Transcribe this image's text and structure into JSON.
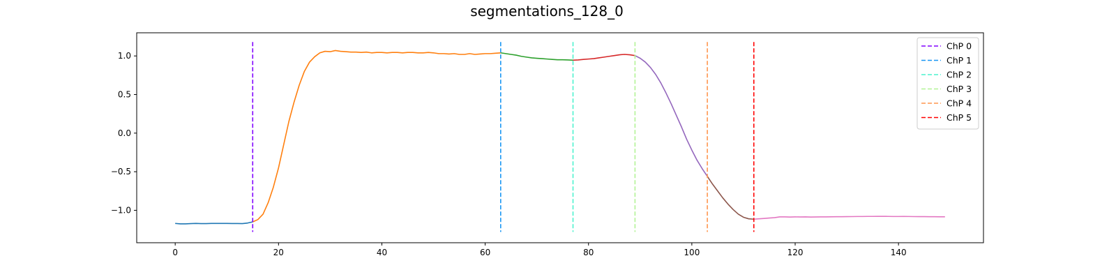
{
  "chart_data": {
    "type": "line",
    "title": "segmentations_128_0",
    "xlabel": "",
    "ylabel": "",
    "xlim": [
      -7.45,
      156.45
    ],
    "ylim": [
      -1.42,
      1.3
    ],
    "x_ticks": [
      0,
      20,
      40,
      60,
      80,
      100,
      120,
      140
    ],
    "x_tick_labels": [
      "0",
      "20",
      "40",
      "60",
      "80",
      "100",
      "120",
      "140"
    ],
    "y_ticks": [
      -1.0,
      -0.5,
      0.0,
      0.5,
      1.0
    ],
    "y_tick_labels": [
      "−1.0",
      "−0.5",
      "0.0",
      "0.5",
      "1.0"
    ],
    "grid": false,
    "legend_position": "top-right",
    "segments": [
      {
        "color": "#1f77b4",
        "x": [
          0,
          1,
          2,
          3,
          4,
          5,
          6,
          7,
          8,
          9,
          10,
          11,
          12,
          13,
          14,
          15
        ],
        "y": [
          -1.17,
          -1.175,
          -1.175,
          -1.172,
          -1.17,
          -1.172,
          -1.172,
          -1.17,
          -1.17,
          -1.17,
          -1.17,
          -1.171,
          -1.171,
          -1.172,
          -1.165,
          -1.15
        ]
      },
      {
        "color": "#ff7f0e",
        "x": [
          15,
          16,
          17,
          18,
          19,
          20,
          21,
          22,
          23,
          24,
          25,
          26,
          27,
          28,
          29,
          30,
          31,
          32,
          33,
          34,
          35,
          36,
          37,
          38,
          39,
          40,
          41,
          42,
          43,
          44,
          45,
          46,
          47,
          48,
          49,
          50,
          51,
          52,
          53,
          54,
          55,
          56,
          57,
          58,
          59,
          60,
          61,
          62,
          63
        ],
        "y": [
          -1.15,
          -1.12,
          -1.05,
          -0.9,
          -0.7,
          -0.45,
          -0.15,
          0.15,
          0.4,
          0.62,
          0.8,
          0.92,
          0.99,
          1.04,
          1.06,
          1.055,
          1.07,
          1.06,
          1.055,
          1.05,
          1.05,
          1.045,
          1.05,
          1.04,
          1.045,
          1.045,
          1.04,
          1.045,
          1.045,
          1.04,
          1.045,
          1.045,
          1.04,
          1.04,
          1.045,
          1.04,
          1.03,
          1.03,
          1.025,
          1.03,
          1.02,
          1.02,
          1.03,
          1.02,
          1.025,
          1.03,
          1.03,
          1.035,
          1.04
        ]
      },
      {
        "color": "#2ca02c",
        "x": [
          63,
          64,
          65,
          66,
          67,
          68,
          69,
          70,
          71,
          72,
          73,
          74,
          75,
          76,
          77
        ],
        "y": [
          1.04,
          1.03,
          1.02,
          1.01,
          0.995,
          0.985,
          0.975,
          0.97,
          0.965,
          0.96,
          0.955,
          0.95,
          0.95,
          0.948,
          0.945
        ]
      },
      {
        "color": "#d62728",
        "x": [
          77,
          78,
          79,
          80,
          81,
          82,
          83,
          84,
          85,
          86,
          87,
          88,
          89
        ],
        "y": [
          0.945,
          0.948,
          0.955,
          0.96,
          0.965,
          0.975,
          0.985,
          0.995,
          1.005,
          1.015,
          1.02,
          1.015,
          1.005
        ]
      },
      {
        "color": "#9467bd",
        "x": [
          89,
          90,
          91,
          92,
          93,
          94,
          95,
          96,
          97,
          98,
          99,
          100,
          101,
          102,
          103
        ],
        "y": [
          1.005,
          0.97,
          0.92,
          0.85,
          0.76,
          0.65,
          0.52,
          0.38,
          0.23,
          0.08,
          -0.08,
          -0.22,
          -0.35,
          -0.46,
          -0.56
        ]
      },
      {
        "color": "#8c564b",
        "x": [
          103,
          104,
          105,
          106,
          107,
          108,
          109,
          110,
          111,
          112
        ],
        "y": [
          -0.56,
          -0.66,
          -0.75,
          -0.84,
          -0.92,
          -0.99,
          -1.05,
          -1.09,
          -1.11,
          -1.115
        ]
      },
      {
        "color": "#e377c2",
        "x": [
          112,
          113,
          114,
          115,
          116,
          117,
          118,
          119,
          120,
          121,
          122,
          123,
          124,
          125,
          126,
          127,
          128,
          129,
          130,
          131,
          132,
          133,
          134,
          135,
          136,
          137,
          138,
          139,
          140,
          141,
          142,
          143,
          144,
          145,
          146,
          147,
          148,
          149
        ],
        "y": [
          -1.115,
          -1.11,
          -1.105,
          -1.1,
          -1.095,
          -1.085,
          -1.085,
          -1.087,
          -1.085,
          -1.086,
          -1.085,
          -1.087,
          -1.086,
          -1.085,
          -1.085,
          -1.084,
          -1.083,
          -1.083,
          -1.082,
          -1.081,
          -1.08,
          -1.08,
          -1.079,
          -1.079,
          -1.078,
          -1.078,
          -1.079,
          -1.08,
          -1.08,
          -1.079,
          -1.08,
          -1.081,
          -1.082,
          -1.082,
          -1.083,
          -1.083,
          -1.084,
          -1.084
        ]
      }
    ],
    "changepoints": [
      {
        "label": "ChP 0",
        "x": 15,
        "color": "#8000ff"
      },
      {
        "label": "ChP 1",
        "x": 63,
        "color": "#1996f3"
      },
      {
        "label": "ChP 2",
        "x": 77,
        "color": "#4cf2ce"
      },
      {
        "label": "ChP 3",
        "x": 89,
        "color": "#b2f396"
      },
      {
        "label": "ChP 4",
        "x": 103,
        "color": "#ff964f"
      },
      {
        "label": "ChP 5",
        "x": 112,
        "color": "#ff0000"
      }
    ],
    "changepoint_yrange": [
      -1.28,
      1.18
    ]
  }
}
